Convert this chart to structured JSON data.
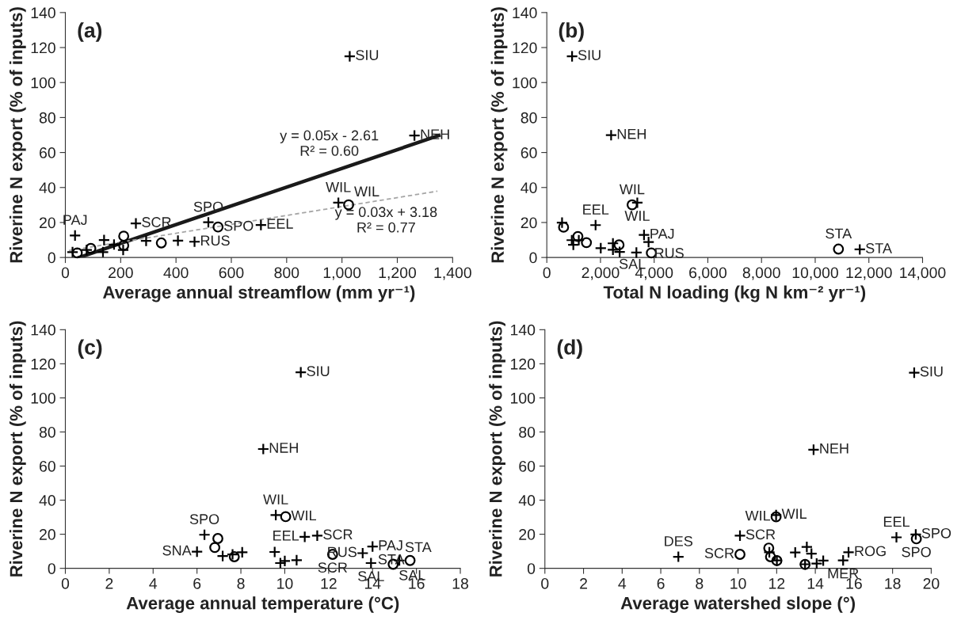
{
  "chart_data": [
    {
      "type": "scatter",
      "title": "(a)",
      "xlabel": "Average annual streamflow (mm yr⁻¹)",
      "ylabel": "Riverine N export (% of inputs)",
      "xlim": [
        0,
        1400
      ],
      "xticks": [
        0,
        200,
        400,
        600,
        800,
        {
          "value": 1000,
          "label": "1,000"
        },
        {
          "value": 1200,
          "label": "1,200"
        },
        {
          "value": 1400,
          "label": "1,400"
        }
      ],
      "ylim": [
        0,
        140
      ],
      "yticks": [
        0,
        20,
        40,
        60,
        80,
        100,
        120,
        140
      ],
      "grid": false,
      "legend": false,
      "series": [
        {
          "marker": "cross",
          "color": "#000000",
          "x": [
            1028,
            1262,
            987,
            517,
            255,
            707,
            35,
            140,
            292,
            407,
            467,
            176,
            209,
            136,
            26,
            77
          ],
          "values": [
            115,
            69.7,
            31.3,
            20.1,
            19.5,
            18.6,
            12.6,
            10,
            9.5,
            9.6,
            9,
            7.4,
            4.3,
            3.1,
            3.1,
            4.3
          ]
        },
        {
          "marker": "circle",
          "color": "#000000",
          "x": [
            1024,
            552,
            211,
            347,
            211,
            92,
            43
          ],
          "values": [
            30.1,
            17.4,
            12.2,
            8.3,
            6.9,
            5.2,
            2.6
          ]
        },
        {
          "type": "line",
          "line_style": "solid",
          "color": "#1a1a1a",
          "x": [
            50,
            1350
          ],
          "values": [
            0,
            69.7
          ]
        },
        {
          "type": "line",
          "line_style": "dashed",
          "color": "#a6a6a6",
          "x": [
            13,
            1345
          ],
          "values": [
            4.0,
            37.9
          ]
        }
      ],
      "annotations": [
        "y = 0.05x - 2.61\nR² = 0.60",
        "y = 0.03x + 3.18\nR² = 0.77",
        {
          "text": "SIU",
          "x": 1028,
          "y": 115
        },
        {
          "text": "NEH",
          "x": 1262,
          "y": 69.7
        },
        {
          "text": "WIL",
          "x": 987,
          "y": 31.3
        },
        {
          "text": "WIL",
          "x": 1024,
          "y": 30.1
        },
        {
          "text": "SPO",
          "x": 517,
          "y": 20.1
        },
        {
          "text": "SPO",
          "x": 552,
          "y": 17.4
        },
        {
          "text": "SCR",
          "x": 255,
          "y": 19.5
        },
        {
          "text": "EEL",
          "x": 707,
          "y": 18.6
        },
        {
          "text": "PAJ",
          "x": 35,
          "y": 12.6
        },
        {
          "text": "RUS",
          "x": 467,
          "y": 9
        }
      ]
    },
    {
      "type": "scatter",
      "title": "(b)",
      "xlabel": "Total N loading (kg N km⁻² yr⁻¹)",
      "ylabel": "Riverine N export (% of inputs)",
      "xlim": [
        0,
        14000
      ],
      "xticks": [
        0,
        {
          "value": 2000,
          "label": "2,000"
        },
        {
          "value": 4000,
          "label": "4,000"
        },
        {
          "value": 6000,
          "label": "6,000"
        },
        {
          "value": 8000,
          "label": "8,000"
        },
        {
          "value": 10000,
          "label": "10,000"
        },
        {
          "value": 12000,
          "label": "12,000"
        },
        {
          "value": 14000,
          "label": "14,000"
        }
      ],
      "ylim": [
        0,
        140
      ],
      "yticks": [
        0,
        20,
        40,
        60,
        80,
        100,
        120,
        140
      ],
      "grid": false,
      "legend": false,
      "series": [
        {
          "marker": "cross",
          "color": "#000000",
          "x": [
            942,
            2396,
            3372,
            1817,
            568,
            3622,
            3792,
            931,
            988,
            1192,
            2010,
            2464,
            2464,
            2714,
            3338,
            11661
          ],
          "values": [
            115,
            69.9,
            31.3,
            18.5,
            19.9,
            12.9,
            8.8,
            9.9,
            7.2,
            9.9,
            5.3,
            8.1,
            4.4,
            3.2,
            2.8,
            4.6
          ]
        },
        {
          "marker": "circle",
          "color": "#000000",
          "x": [
            3179,
            625,
            1158,
            1476,
            2691,
            3895,
            10866
          ],
          "values": [
            30.1,
            17.3,
            12,
            8.5,
            7.2,
            2.6,
            4.8
          ]
        }
      ],
      "annotations": [
        {
          "text": "SIU",
          "x": 942,
          "y": 115
        },
        {
          "text": "NEH",
          "x": 2396,
          "y": 69.9
        },
        {
          "text": "WIL",
          "x": 3179,
          "y": 30.1
        },
        {
          "text": "WIL",
          "x": 3372,
          "y": 31.3
        },
        {
          "text": "EEL",
          "x": 1817,
          "y": 18.5
        },
        {
          "text": "PAJ",
          "x": 3622,
          "y": 12.9
        },
        {
          "text": "RUS",
          "x": 3792,
          "y": 8.8
        },
        {
          "text": "SAL",
          "x": 3895,
          "y": 2.6
        },
        {
          "text": "STA",
          "x": 10866,
          "y": 4.8
        },
        {
          "text": "STA",
          "x": 11661,
          "y": 4.6
        }
      ]
    },
    {
      "type": "scatter",
      "title": "(c)",
      "xlabel": "Average annual temperature (°C)",
      "ylabel": "Riverine N export (% of inputs)",
      "xlim": [
        0,
        18
      ],
      "xticks": [
        0,
        2,
        4,
        6,
        8,
        10,
        12,
        14,
        16,
        18
      ],
      "ylim": [
        0,
        140
      ],
      "yticks": [
        0,
        20,
        40,
        60,
        80,
        100,
        120,
        140
      ],
      "grid": false,
      "legend": false,
      "series": [
        {
          "marker": "cross",
          "color": "#000000",
          "x": [
            10.73,
            9.02,
            9.59,
            10.91,
            11.48,
            6.34,
            6.0,
            7.17,
            7.62,
            8.06,
            9.54,
            9.8,
            10.0,
            10.54,
            13.55,
            14.0,
            13.93,
            15.22
          ],
          "values": [
            115,
            70,
            31.3,
            18.5,
            19.2,
            19.7,
            9.8,
            7.2,
            8.2,
            9.4,
            9.6,
            3.1,
            4.3,
            4.8,
            8.9,
            12.8,
            3.1,
            4.6
          ]
        },
        {
          "marker": "circle",
          "color": "#000000",
          "x": [
            10.04,
            6.95,
            6.81,
            7.7,
            12.18,
            14.94,
            15.71
          ],
          "values": [
            30.3,
            17.5,
            12.2,
            6.8,
            8.2,
            2.4,
            4.6
          ]
        }
      ],
      "annotations": [
        {
          "text": "SIU",
          "x": 10.73,
          "y": 115
        },
        {
          "text": "NEH",
          "x": 9.02,
          "y": 70
        },
        {
          "text": "WIL",
          "x": 9.59,
          "y": 31.3
        },
        {
          "text": "WIL",
          "x": 10.04,
          "y": 30.3
        },
        {
          "text": "SPO",
          "x": 6.34,
          "y": 19.7
        },
        {
          "text": "SNA",
          "x": 6.0,
          "y": 9.8
        },
        {
          "text": "EEL",
          "x": 10.91,
          "y": 18.5
        },
        {
          "text": "SCR",
          "x": 11.48,
          "y": 19.2
        },
        {
          "text": "SCR",
          "x": 12.18,
          "y": 8.2
        },
        {
          "text": "PAJ",
          "x": 14.0,
          "y": 12.8
        },
        {
          "text": "RUS",
          "x": 13.55,
          "y": 8.9
        },
        {
          "text": "SAL",
          "x": 13.93,
          "y": 3.1
        },
        {
          "text": "SAL",
          "x": 14.94,
          "y": 2.4
        },
        {
          "text": "STA",
          "x": 15.22,
          "y": 4.6
        },
        {
          "text": "STA",
          "x": 15.71,
          "y": 4.6
        }
      ]
    },
    {
      "type": "scatter",
      "title": "(d)",
      "xlabel": "Average watershed slope (°)",
      "ylabel": "Riverine N export (% of inputs)",
      "xlim": [
        0,
        20
      ],
      "xticks": [
        0,
        2,
        4,
        6,
        8,
        10,
        12,
        14,
        16,
        18,
        20
      ],
      "ylim": [
        0,
        140
      ],
      "yticks": [
        0,
        20,
        40,
        60,
        80,
        100,
        120,
        140
      ],
      "grid": false,
      "legend": false,
      "series": [
        {
          "marker": "cross",
          "color": "#000000",
          "x": [
            19.12,
            13.91,
            11.97,
            19.2,
            18.2,
            10.1,
            6.91,
            11.62,
            12.96,
            13.56,
            13.8,
            14.07,
            14.41,
            15.72,
            15.44,
            13.47,
            12.01
          ],
          "values": [
            114.8,
            69.6,
            31.3,
            19.9,
            18.2,
            19.2,
            6.8,
            9.4,
            9.3,
            12.6,
            8.6,
            2.8,
            4.5,
            9.4,
            4.7,
            2.4,
            4.7
          ]
        },
        {
          "marker": "circle",
          "color": "#000000",
          "x": [
            11.97,
            19.23,
            10.1,
            11.59,
            11.68,
            12.01,
            13.47
          ],
          "values": [
            30.2,
            17.3,
            8.2,
            11.9,
            6.8,
            4.5,
            2.3
          ]
        }
      ],
      "annotations": [
        {
          "text": "SIU",
          "x": 19.12,
          "y": 114.8
        },
        {
          "text": "NEH",
          "x": 13.91,
          "y": 69.6
        },
        {
          "text": "WIL",
          "x": 11.97,
          "y": 31.3
        },
        {
          "text": "WIL",
          "x": 11.97,
          "y": 30.2
        },
        {
          "text": "EEL",
          "x": 18.2,
          "y": 18.2
        },
        {
          "text": "SPO",
          "x": 19.2,
          "y": 19.9
        },
        {
          "text": "SPO",
          "x": 19.23,
          "y": 17.3
        },
        {
          "text": "SCR",
          "x": 10.1,
          "y": 19.2
        },
        {
          "text": "SCR",
          "x": 10.1,
          "y": 8.2
        },
        {
          "text": "DES",
          "x": 6.91,
          "y": 6.8
        },
        {
          "text": "ROG",
          "x": 15.72,
          "y": 9.4
        },
        {
          "text": "MER",
          "x": 15.44,
          "y": 4.7
        }
      ]
    }
  ]
}
